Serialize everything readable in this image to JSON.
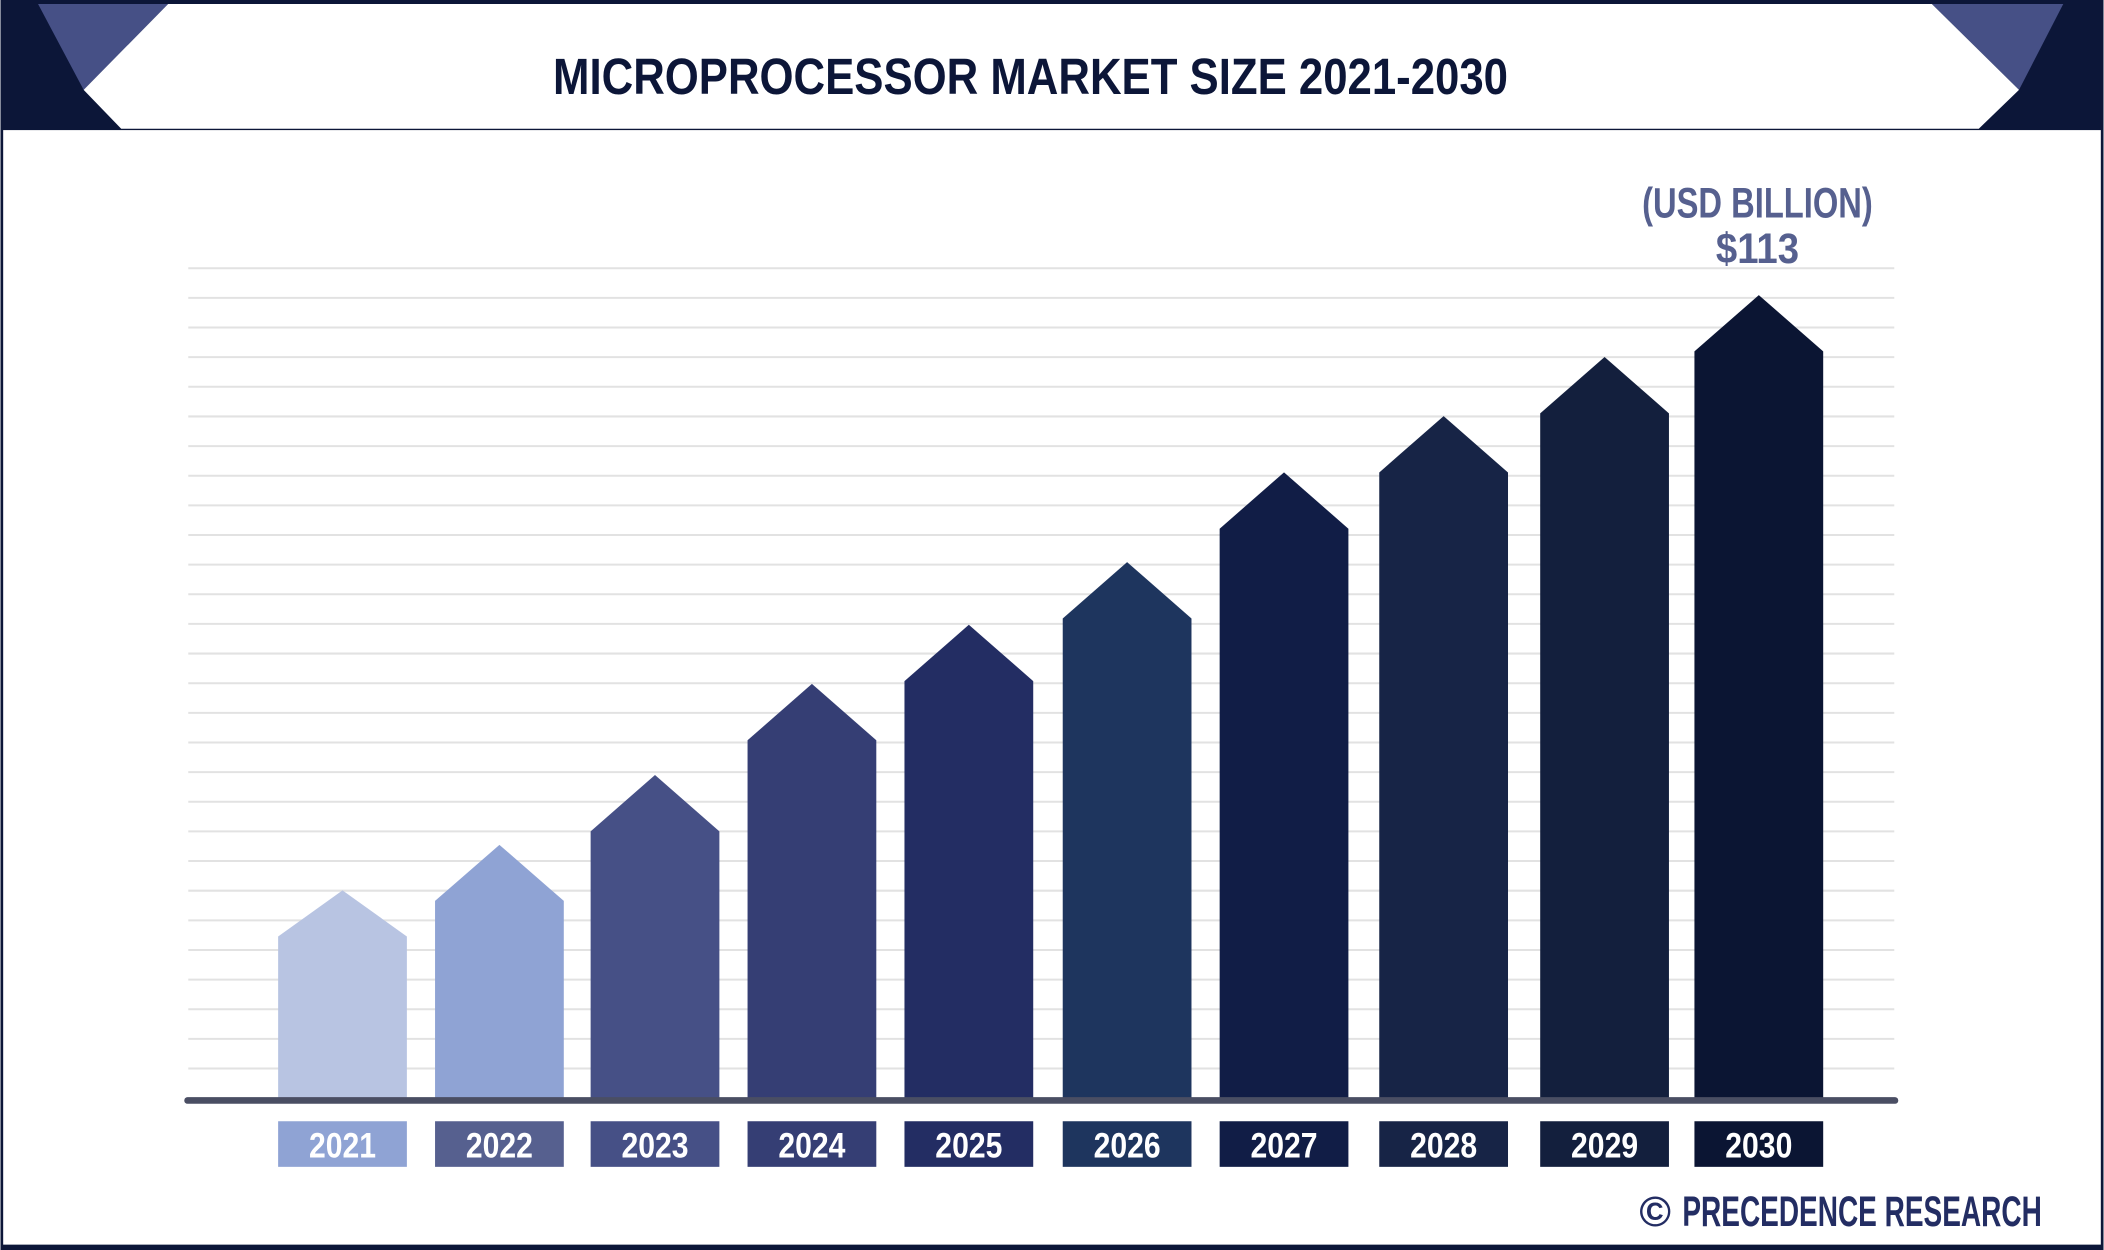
{
  "chart_data": {
    "type": "bar",
    "title": "MICROPROCESSOR MARKET SIZE 2021-2030",
    "unit_label": "(USD BILLION)",
    "categories": [
      "2021",
      "2022",
      "2023",
      "2024",
      "2025",
      "2026",
      "2027",
      "2028",
      "2029",
      "2030"
    ],
    "values": [
      29.4,
      35.8,
      45.6,
      58.4,
      66.7,
      75.5,
      88.1,
      96.0,
      104.3,
      113
    ],
    "data_labels": {
      "2030": "$113"
    },
    "ylim": [
      0,
      113
    ],
    "grid": true,
    "bar_colors": [
      "#b8c4e2",
      "#8fa3d4",
      "#465086",
      "#353e74",
      "#232d63",
      "#1e355e",
      "#111d46",
      "#172446",
      "#131f3d",
      "#0b1533"
    ],
    "label_colors": [
      "#8fa3d4",
      "#56608f",
      "#465086",
      "#353e74",
      "#232d63",
      "#1e355e",
      "#111d46",
      "#172446",
      "#131f3d",
      "#0b1533"
    ]
  },
  "footer": {
    "brand": "PRECEDENCE RESEARCH",
    "copyright_symbol": "©"
  },
  "colors": {
    "frame": "#0c1638",
    "accent": "#465086",
    "unit_text": "#56608f",
    "axis": "#4a4e63",
    "grid": "#e2e2e2"
  }
}
